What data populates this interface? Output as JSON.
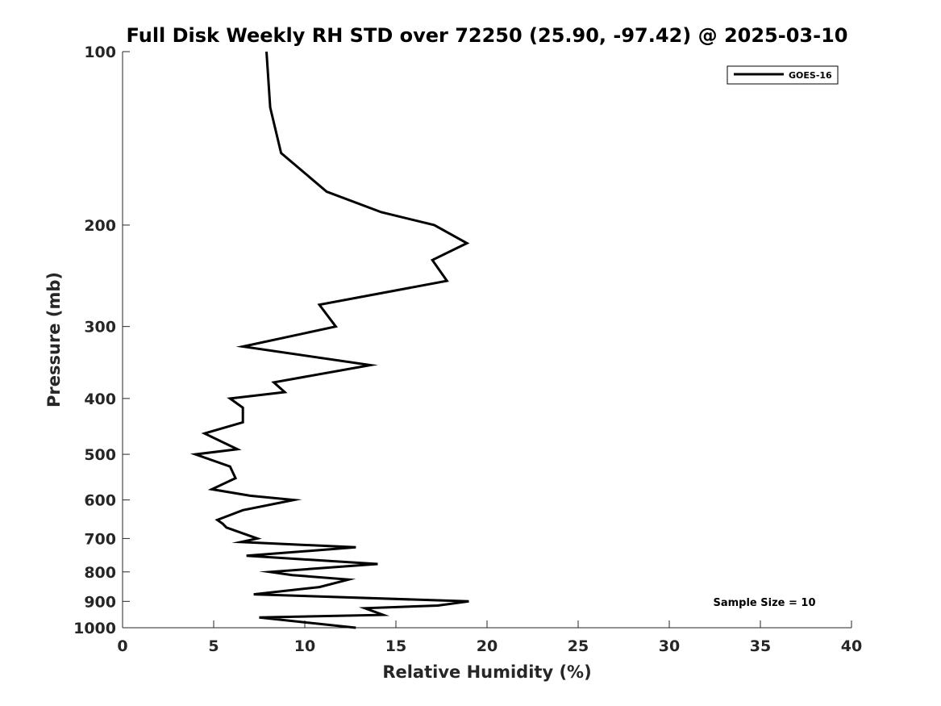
{
  "chart_data": {
    "type": "line",
    "title": "Full Disk Weekly RH STD over 72250 (25.90, -97.42) @ 2025-03-10",
    "xlabel": "Relative Humidity (%)",
    "ylabel": "Pressure (mb)",
    "xlim": [
      0,
      40
    ],
    "ylim": [
      100,
      1000
    ],
    "yscale": "log",
    "y_reversed": true,
    "grid": false,
    "x_ticks": [
      0,
      5,
      10,
      15,
      20,
      25,
      30,
      35,
      40
    ],
    "x_tick_labels": [
      "0",
      "5",
      "10",
      "15",
      "20",
      "25",
      "30",
      "35",
      "40"
    ],
    "y_ticks": [
      100,
      200,
      300,
      400,
      500,
      600,
      700,
      800,
      900,
      1000
    ],
    "y_tick_labels": [
      "100",
      "200",
      "300",
      "400",
      "500",
      "600",
      "700",
      "800",
      "900",
      "1000"
    ],
    "legend": {
      "position": "top-right",
      "entries": [
        "GOES-16"
      ]
    },
    "annotation": "Sample Size = 10",
    "series": [
      {
        "name": "GOES-16",
        "color": "#000000",
        "points": [
          [
            7.9,
            100
          ],
          [
            8.1,
            125
          ],
          [
            8.7,
            150
          ],
          [
            11.2,
            175
          ],
          [
            14.2,
            190
          ],
          [
            17.1,
            200
          ],
          [
            18.9,
            215
          ],
          [
            17.0,
            230
          ],
          [
            17.8,
            250
          ],
          [
            10.8,
            275
          ],
          [
            11.7,
            300
          ],
          [
            6.6,
            325
          ],
          [
            13.6,
            350
          ],
          [
            8.3,
            375
          ],
          [
            8.9,
            390
          ],
          [
            5.9,
            400
          ],
          [
            6.6,
            415
          ],
          [
            6.6,
            440
          ],
          [
            4.5,
            460
          ],
          [
            6.3,
            490
          ],
          [
            4.0,
            500
          ],
          [
            5.9,
            525
          ],
          [
            6.2,
            550
          ],
          [
            4.9,
            575
          ],
          [
            7.0,
            590
          ],
          [
            9.4,
            600
          ],
          [
            6.6,
            625
          ],
          [
            5.2,
            650
          ],
          [
            5.5,
            660
          ],
          [
            5.7,
            670
          ],
          [
            7.4,
            700
          ],
          [
            6.5,
            710
          ],
          [
            12.8,
            725
          ],
          [
            6.8,
            750
          ],
          [
            14.0,
            775
          ],
          [
            8.1,
            800
          ],
          [
            9.3,
            810
          ],
          [
            12.4,
            825
          ],
          [
            10.8,
            850
          ],
          [
            7.2,
            875
          ],
          [
            19.0,
            900
          ],
          [
            17.3,
            915
          ],
          [
            13.3,
            925
          ],
          [
            14.3,
            950
          ],
          [
            7.5,
            960
          ],
          [
            12.8,
            1000
          ]
        ]
      }
    ]
  }
}
